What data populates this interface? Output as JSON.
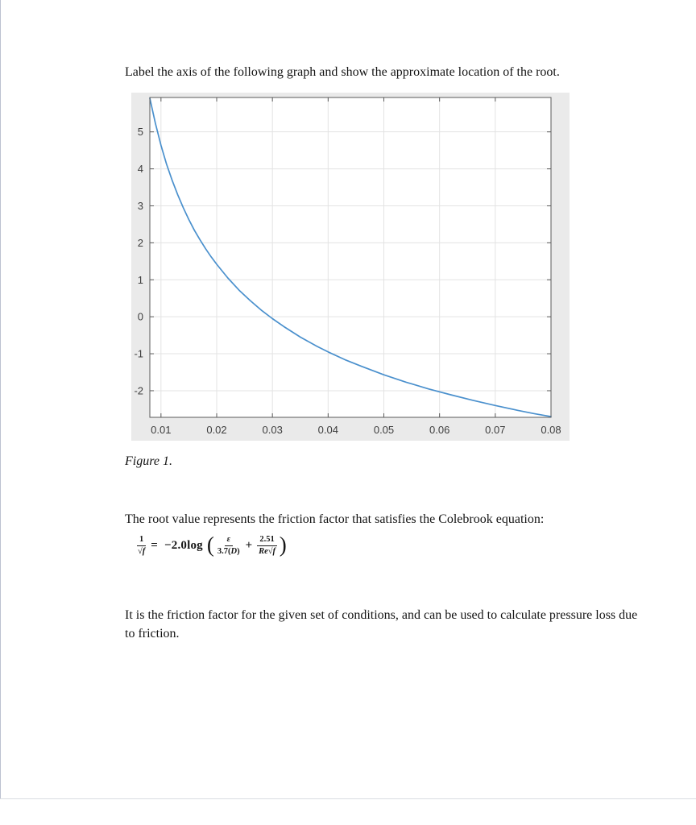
{
  "document": {
    "instruction": "Label the axis of the following graph and show the approximate location of the root.",
    "figure_caption": "Figure 1.",
    "paragraph1": "The root value represents the friction factor that satisfies the Colebrook equation:",
    "paragraph2": "It is the friction factor for the given set of conditions, and can be used to calculate pressure loss due to friction."
  },
  "equation": {
    "lhs": {
      "num": "1",
      "radical": "√",
      "arg": "f"
    },
    "equals": "=",
    "prefix": "−2.0log",
    "lparen": "(",
    "term1": {
      "num": "ε",
      "den_pre": "3.7(",
      "den_arg": "D",
      "den_post": ")"
    },
    "plus": "+",
    "term2": {
      "num": "2.51",
      "den_pre": "Re",
      "radical": "√",
      "arg": "f"
    },
    "rparen": ")"
  },
  "colors": {
    "curve": "#4a90cd",
    "grid": "#e3e3e3",
    "axis": "#5a5a5a",
    "tick_label": "#3d3d3d",
    "figure_bg": "#eaeaea",
    "plot_bg": "#ffffff"
  },
  "chart_data": {
    "type": "line",
    "title": "",
    "xlabel": "",
    "ylabel": "",
    "grid": true,
    "legend": "none",
    "xlim": [
      0.008,
      0.08
    ],
    "ylim": [
      -2.72,
      5.93
    ],
    "x_ticks": {
      "values": [
        0.01,
        0.02,
        0.03,
        0.04,
        0.05,
        0.06,
        0.07,
        0.08
      ],
      "labels": [
        "0.01",
        "0.02",
        "0.03",
        "0.04",
        "0.05",
        "0.06",
        "0.07",
        "0.08"
      ]
    },
    "y_ticks": {
      "values": [
        -2,
        -1,
        0,
        1,
        2,
        3,
        4,
        5
      ],
      "labels": [
        "-2",
        "-1",
        "0",
        "1",
        "2",
        "3",
        "4",
        "5"
      ]
    },
    "series": [
      {
        "points": [
          [
            0.008,
            5.91
          ],
          [
            0.009,
            5.23
          ],
          [
            0.01,
            4.64
          ],
          [
            0.011,
            4.13
          ],
          [
            0.012,
            3.69
          ],
          [
            0.013,
            3.3
          ],
          [
            0.014,
            2.95
          ],
          [
            0.015,
            2.63
          ],
          [
            0.016,
            2.34
          ],
          [
            0.017,
            2.08
          ],
          [
            0.018,
            1.84
          ],
          [
            0.019,
            1.62
          ],
          [
            0.02,
            1.42
          ],
          [
            0.022,
            1.05
          ],
          [
            0.024,
            0.72
          ],
          [
            0.026,
            0.44
          ],
          [
            0.028,
            0.18
          ],
          [
            0.03,
            -0.05
          ],
          [
            0.032,
            -0.26
          ],
          [
            0.035,
            -0.55
          ],
          [
            0.038,
            -0.8
          ],
          [
            0.04,
            -0.95
          ],
          [
            0.043,
            -1.16
          ],
          [
            0.046,
            -1.34
          ],
          [
            0.05,
            -1.57
          ],
          [
            0.054,
            -1.77
          ],
          [
            0.058,
            -1.95
          ],
          [
            0.062,
            -2.11
          ],
          [
            0.066,
            -2.26
          ],
          [
            0.07,
            -2.4
          ],
          [
            0.074,
            -2.53
          ],
          [
            0.077,
            -2.62
          ],
          [
            0.08,
            -2.7
          ]
        ]
      }
    ]
  }
}
